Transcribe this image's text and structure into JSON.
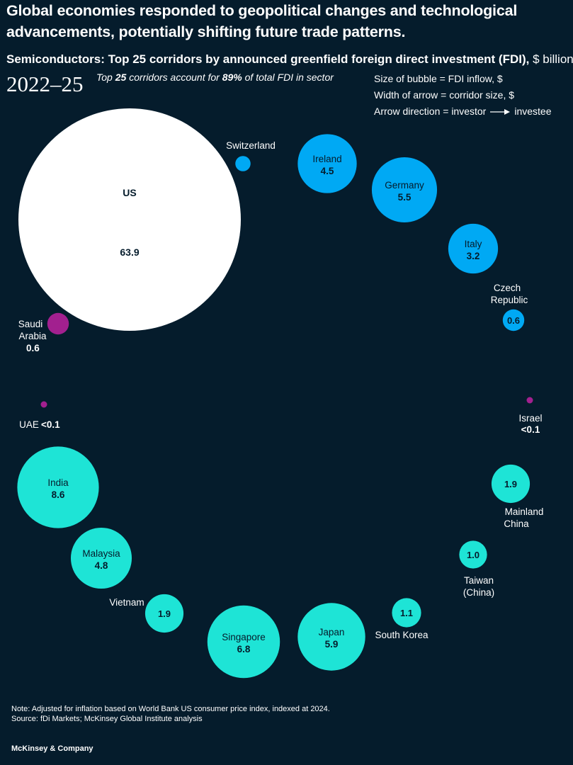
{
  "headline": "Global economies responded to geopolitical changes and technological advancements, potentially shifting future trade patterns.",
  "subtitle": {
    "bold": "Semiconductors: Top 25 corridors by announced greenfield foreign direct investment (FDI),",
    "normal": "$ billion"
  },
  "period": "2022–25",
  "top_note": {
    "prefix": "Top ",
    "count": "25",
    "middle": " corridors account for ",
    "share": "89%",
    "suffix": " of total FDI in sector"
  },
  "legend": {
    "size": "Size of bubble = FDI inflow, $",
    "width": "Width of arrow = corridor size, $",
    "direction_left": "Arrow direction = investor",
    "direction_right": "investee"
  },
  "colors": {
    "background": "#051c2c",
    "us": "#ffffff",
    "europe": "#00a9f4",
    "middle_east": "#a2208f",
    "asia": "#1ee4d6"
  },
  "chart_data": {
    "type": "bubble",
    "unit": "$ billion",
    "bubbles": [
      {
        "name": "US",
        "value": 63.9,
        "label": "63.9",
        "group": "us"
      },
      {
        "name": "Switzerland",
        "value": 0.3,
        "label": "",
        "group": "europe"
      },
      {
        "name": "Ireland",
        "value": 4.5,
        "label": "4.5",
        "group": "europe"
      },
      {
        "name": "Germany",
        "value": 5.5,
        "label": "5.5",
        "group": "europe"
      },
      {
        "name": "Italy",
        "value": 3.2,
        "label": "3.2",
        "group": "europe"
      },
      {
        "name": "Czech Republic",
        "value": 0.6,
        "label": "0.6",
        "group": "europe"
      },
      {
        "name": "Israel",
        "value": 0.05,
        "label": "<0.1",
        "group": "middle_east"
      },
      {
        "name": "Mainland China",
        "value": 1.9,
        "label": "1.9",
        "group": "asia"
      },
      {
        "name": "Taiwan (China)",
        "value": 1.0,
        "label": "1.0",
        "group": "asia"
      },
      {
        "name": "South Korea",
        "value": 1.1,
        "label": "1.1",
        "group": "asia"
      },
      {
        "name": "Japan",
        "value": 5.9,
        "label": "5.9",
        "group": "asia"
      },
      {
        "name": "Singapore",
        "value": 6.8,
        "label": "6.8",
        "group": "asia"
      },
      {
        "name": "Vietnam",
        "value": 1.9,
        "label": "1.9",
        "group": "asia"
      },
      {
        "name": "Malaysia",
        "value": 4.8,
        "label": "4.8",
        "group": "asia"
      },
      {
        "name": "India",
        "value": 8.6,
        "label": "8.6",
        "group": "asia"
      },
      {
        "name": "UAE",
        "value": 0.05,
        "label": "<0.1",
        "group": "middle_east"
      },
      {
        "name": "Saudi Arabia",
        "value": 0.6,
        "label": "0.6",
        "group": "middle_east"
      }
    ]
  },
  "footnote": {
    "note": "Note: Adjusted for inflation based on World Bank US consumer price index, indexed at 2024.",
    "source": "Source: fDi Markets; McKinsey Global Institute analysis"
  },
  "brand": "McKinsey & Company"
}
